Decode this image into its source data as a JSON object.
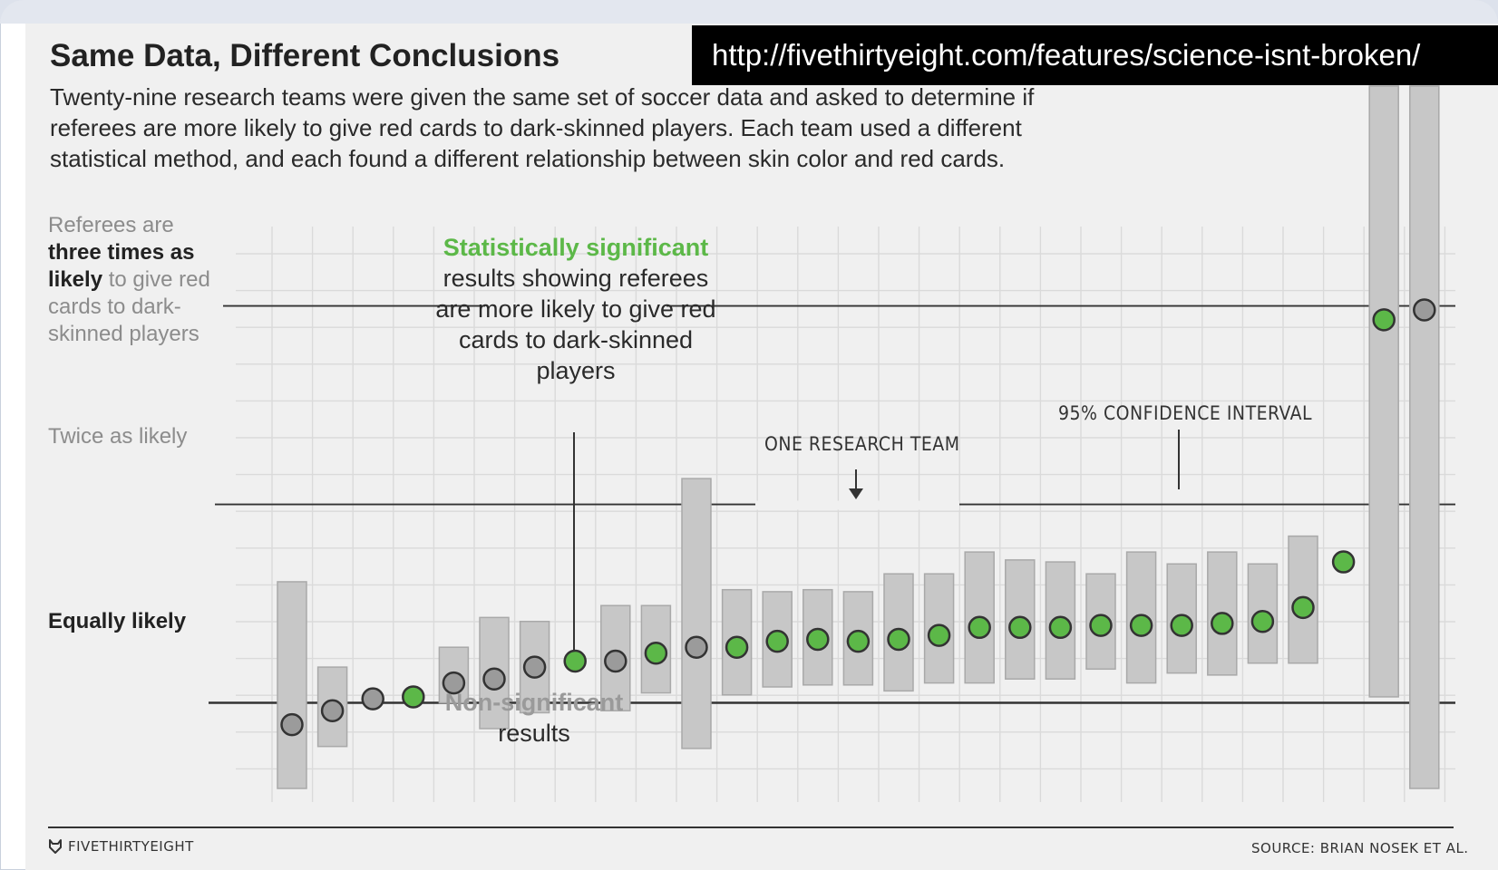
{
  "title": "Same Data, Different Conclusions",
  "url": "http://fivethirtyeight.com/features/science-isnt-broken/",
  "subtitle_lines": [
    "Twenty-nine research teams were given the same set of soccer data and asked to determine if",
    "referees are more likely to give red cards to dark-skinned players. Each team used a different",
    "statistical method, and each found a different relationship between skin color and red cards."
  ],
  "y_labels": {
    "three_prefix": "Referees are",
    "three_bold": "three times as likely",
    "three_suffix": "to give red cards to dark-skinned players",
    "twice": "Twice as likely",
    "equal": "Equally likely"
  },
  "annotations": {
    "significant_highlight": "Statistically significant",
    "significant_rest": "results showing referees are more likely to give red cards to dark-skinned players",
    "nonsig_highlight": "Non-significant",
    "nonsig_rest": "results",
    "one_team": "ONE RESEARCH TEAM",
    "ci": "95% CONFIDENCE INTERVAL"
  },
  "footer": {
    "brand": "FIVETHIRTYEIGHT",
    "source": "SOURCE: BRIAN NOSEK ET AL."
  },
  "colors": {
    "significant": "#5cb848",
    "nonsignificant": "#9b9b9b",
    "ci_bar": "#c7c7c7",
    "background": "#f0f0f0"
  },
  "chart_data": {
    "type": "scatter",
    "y_axis": "odds ratio",
    "ylim": [
      0.5,
      3.4
    ],
    "y_reference_lines": [
      1,
      2,
      3
    ],
    "grid": true,
    "series": [
      {
        "significant": [
          false,
          false,
          false,
          true,
          false,
          false,
          false,
          true,
          false,
          true,
          false,
          true,
          true,
          true,
          true,
          true,
          true,
          true,
          true,
          true,
          true,
          true,
          true,
          true,
          true,
          true,
          true,
          true,
          false
        ],
        "estimate": [
          0.89,
          0.96,
          1.02,
          1.03,
          1.1,
          1.12,
          1.18,
          1.21,
          1.21,
          1.25,
          1.28,
          1.28,
          1.31,
          1.32,
          1.31,
          1.32,
          1.34,
          1.38,
          1.38,
          1.38,
          1.39,
          1.39,
          1.39,
          1.4,
          1.41,
          1.48,
          1.71,
          2.93,
          2.98
        ],
        "ci_low": [
          0.49,
          0.78,
          null,
          null,
          1.0,
          0.87,
          0.95,
          null,
          0.96,
          1.05,
          0.77,
          1.04,
          1.08,
          1.09,
          1.09,
          1.06,
          1.1,
          1.1,
          1.12,
          1.12,
          1.17,
          1.1,
          1.15,
          1.14,
          1.2,
          1.2,
          null,
          1.03,
          0.14
        ],
        "ci_high": [
          1.61,
          1.18,
          null,
          null,
          1.28,
          1.43,
          1.41,
          null,
          1.49,
          1.49,
          2.13,
          1.57,
          1.56,
          1.57,
          1.56,
          1.65,
          1.65,
          1.76,
          1.72,
          1.71,
          1.65,
          1.76,
          1.7,
          1.76,
          1.7,
          1.84,
          null,
          5.0,
          5.0
        ]
      }
    ]
  }
}
